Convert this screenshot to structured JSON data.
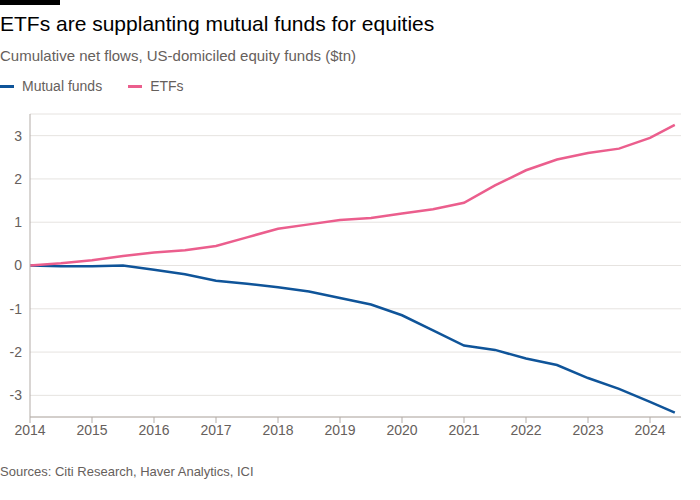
{
  "chart_data": {
    "type": "line",
    "title": "ETFs are supplanting mutual funds for equities",
    "subtitle": "Cumulative net flows, US-domiciled equity funds ($tn)",
    "source": "Sources: Citi Research, Haver Analytics, ICI",
    "x": [
      2014,
      2014.5,
      2015,
      2015.5,
      2016,
      2016.5,
      2017,
      2017.5,
      2018,
      2018.5,
      2019,
      2019.5,
      2020,
      2020.5,
      2021,
      2021.5,
      2022,
      2022.5,
      2023,
      2023.5,
      2024,
      2024.4
    ],
    "series": [
      {
        "name": "Mutual funds",
        "color": "#0f5499",
        "values": [
          0,
          -0.02,
          -0.02,
          0,
          -0.1,
          -0.2,
          -0.35,
          -0.42,
          -0.5,
          -0.6,
          -0.75,
          -0.9,
          -1.15,
          -1.5,
          -1.85,
          -1.95,
          -2.15,
          -2.3,
          -2.6,
          -2.85,
          -3.15,
          -3.4
        ]
      },
      {
        "name": "ETFs",
        "color": "#eb5e8d",
        "values": [
          0,
          0.05,
          0.12,
          0.22,
          0.3,
          0.35,
          0.45,
          0.65,
          0.85,
          0.95,
          1.05,
          1.1,
          1.2,
          1.3,
          1.45,
          1.85,
          2.2,
          2.45,
          2.6,
          2.7,
          2.95,
          3.25
        ]
      }
    ],
    "xlim": [
      2014,
      2024.5
    ],
    "xticks": [
      2014,
      2015,
      2016,
      2017,
      2018,
      2019,
      2020,
      2021,
      2022,
      2023,
      2024
    ],
    "ylim": [
      -3.5,
      3.5
    ],
    "yticks": [
      -3,
      -2,
      -1,
      0,
      1,
      2,
      3
    ],
    "grid": true,
    "legend": "top-left"
  }
}
